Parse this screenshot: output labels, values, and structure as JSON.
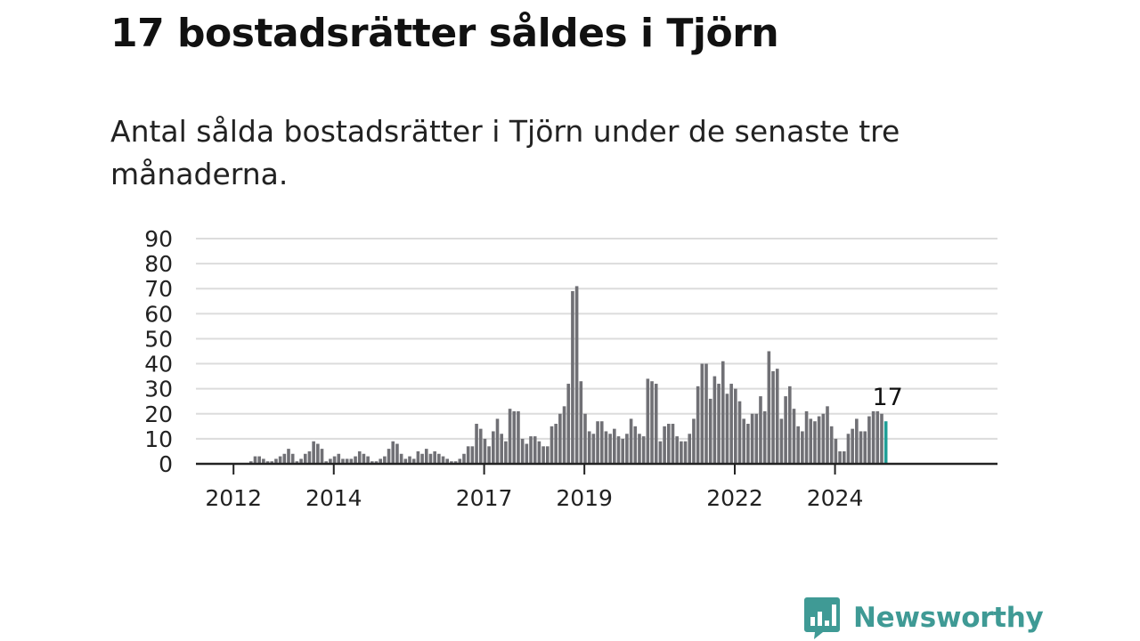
{
  "title": "17 bostadsrätter såldes i Tjörn",
  "subtitle": "Antal sålda bostadsrätter i Tjörn under de senaste tre månaderna.",
  "brand": {
    "name": "Newsworthy",
    "icon": "newsworthy-logo-icon",
    "color": "#3f9a95"
  },
  "chart_data": {
    "type": "bar",
    "title": "17 bostadsrätter såldes i Tjörn",
    "subtitle": "Antal sålda bostadsrätter i Tjörn under de senaste tre månaderna.",
    "xlabel": "",
    "ylabel": "",
    "ylim": [
      0,
      90
    ],
    "yticks": [
      0,
      10,
      20,
      30,
      40,
      50,
      60,
      70,
      80,
      90
    ],
    "xticks": [
      "2012",
      "2014",
      "2017",
      "2019",
      "2022",
      "2024"
    ],
    "grid": true,
    "legend": "none",
    "start": "2012-01",
    "frequency": "monthly (rolling three-month totals)",
    "values": [
      0,
      0,
      0,
      0,
      0,
      0,
      0,
      0,
      0,
      0,
      0,
      1,
      3,
      3,
      2,
      1,
      1,
      2,
      3,
      4,
      6,
      4,
      1,
      2,
      4,
      5,
      9,
      8,
      6,
      1,
      2,
      3,
      4,
      2,
      2,
      2,
      3,
      5,
      4,
      3,
      1,
      1,
      2,
      3,
      6,
      9,
      8,
      4,
      2,
      3,
      2,
      5,
      4,
      6,
      4,
      5,
      4,
      3,
      2,
      1,
      1,
      2,
      4,
      7,
      7,
      16,
      14,
      10,
      7,
      13,
      18,
      12,
      9,
      22,
      21,
      21,
      10,
      8,
      11,
      11,
      9,
      7,
      7,
      15,
      16,
      20,
      23,
      32,
      69,
      71,
      33,
      20,
      13,
      12,
      17,
      17,
      13,
      12,
      14,
      11,
      10,
      12,
      18,
      15,
      12,
      11,
      34,
      33,
      32,
      9,
      15,
      16,
      16,
      11,
      9,
      9,
      12,
      18,
      31,
      40,
      40,
      26,
      35,
      32,
      41,
      28,
      32,
      30,
      25,
      18,
      16,
      20,
      20,
      27,
      21,
      45,
      37,
      38,
      18,
      27,
      31,
      22,
      15,
      13,
      21,
      18,
      17,
      19,
      20,
      23,
      15,
      10,
      5,
      5,
      12,
      14,
      18,
      13,
      13,
      19,
      21,
      21,
      20,
      17
    ],
    "highlight": {
      "label": "17",
      "value": 17,
      "color": "#1f9e96"
    },
    "bar_color": "#707075"
  }
}
